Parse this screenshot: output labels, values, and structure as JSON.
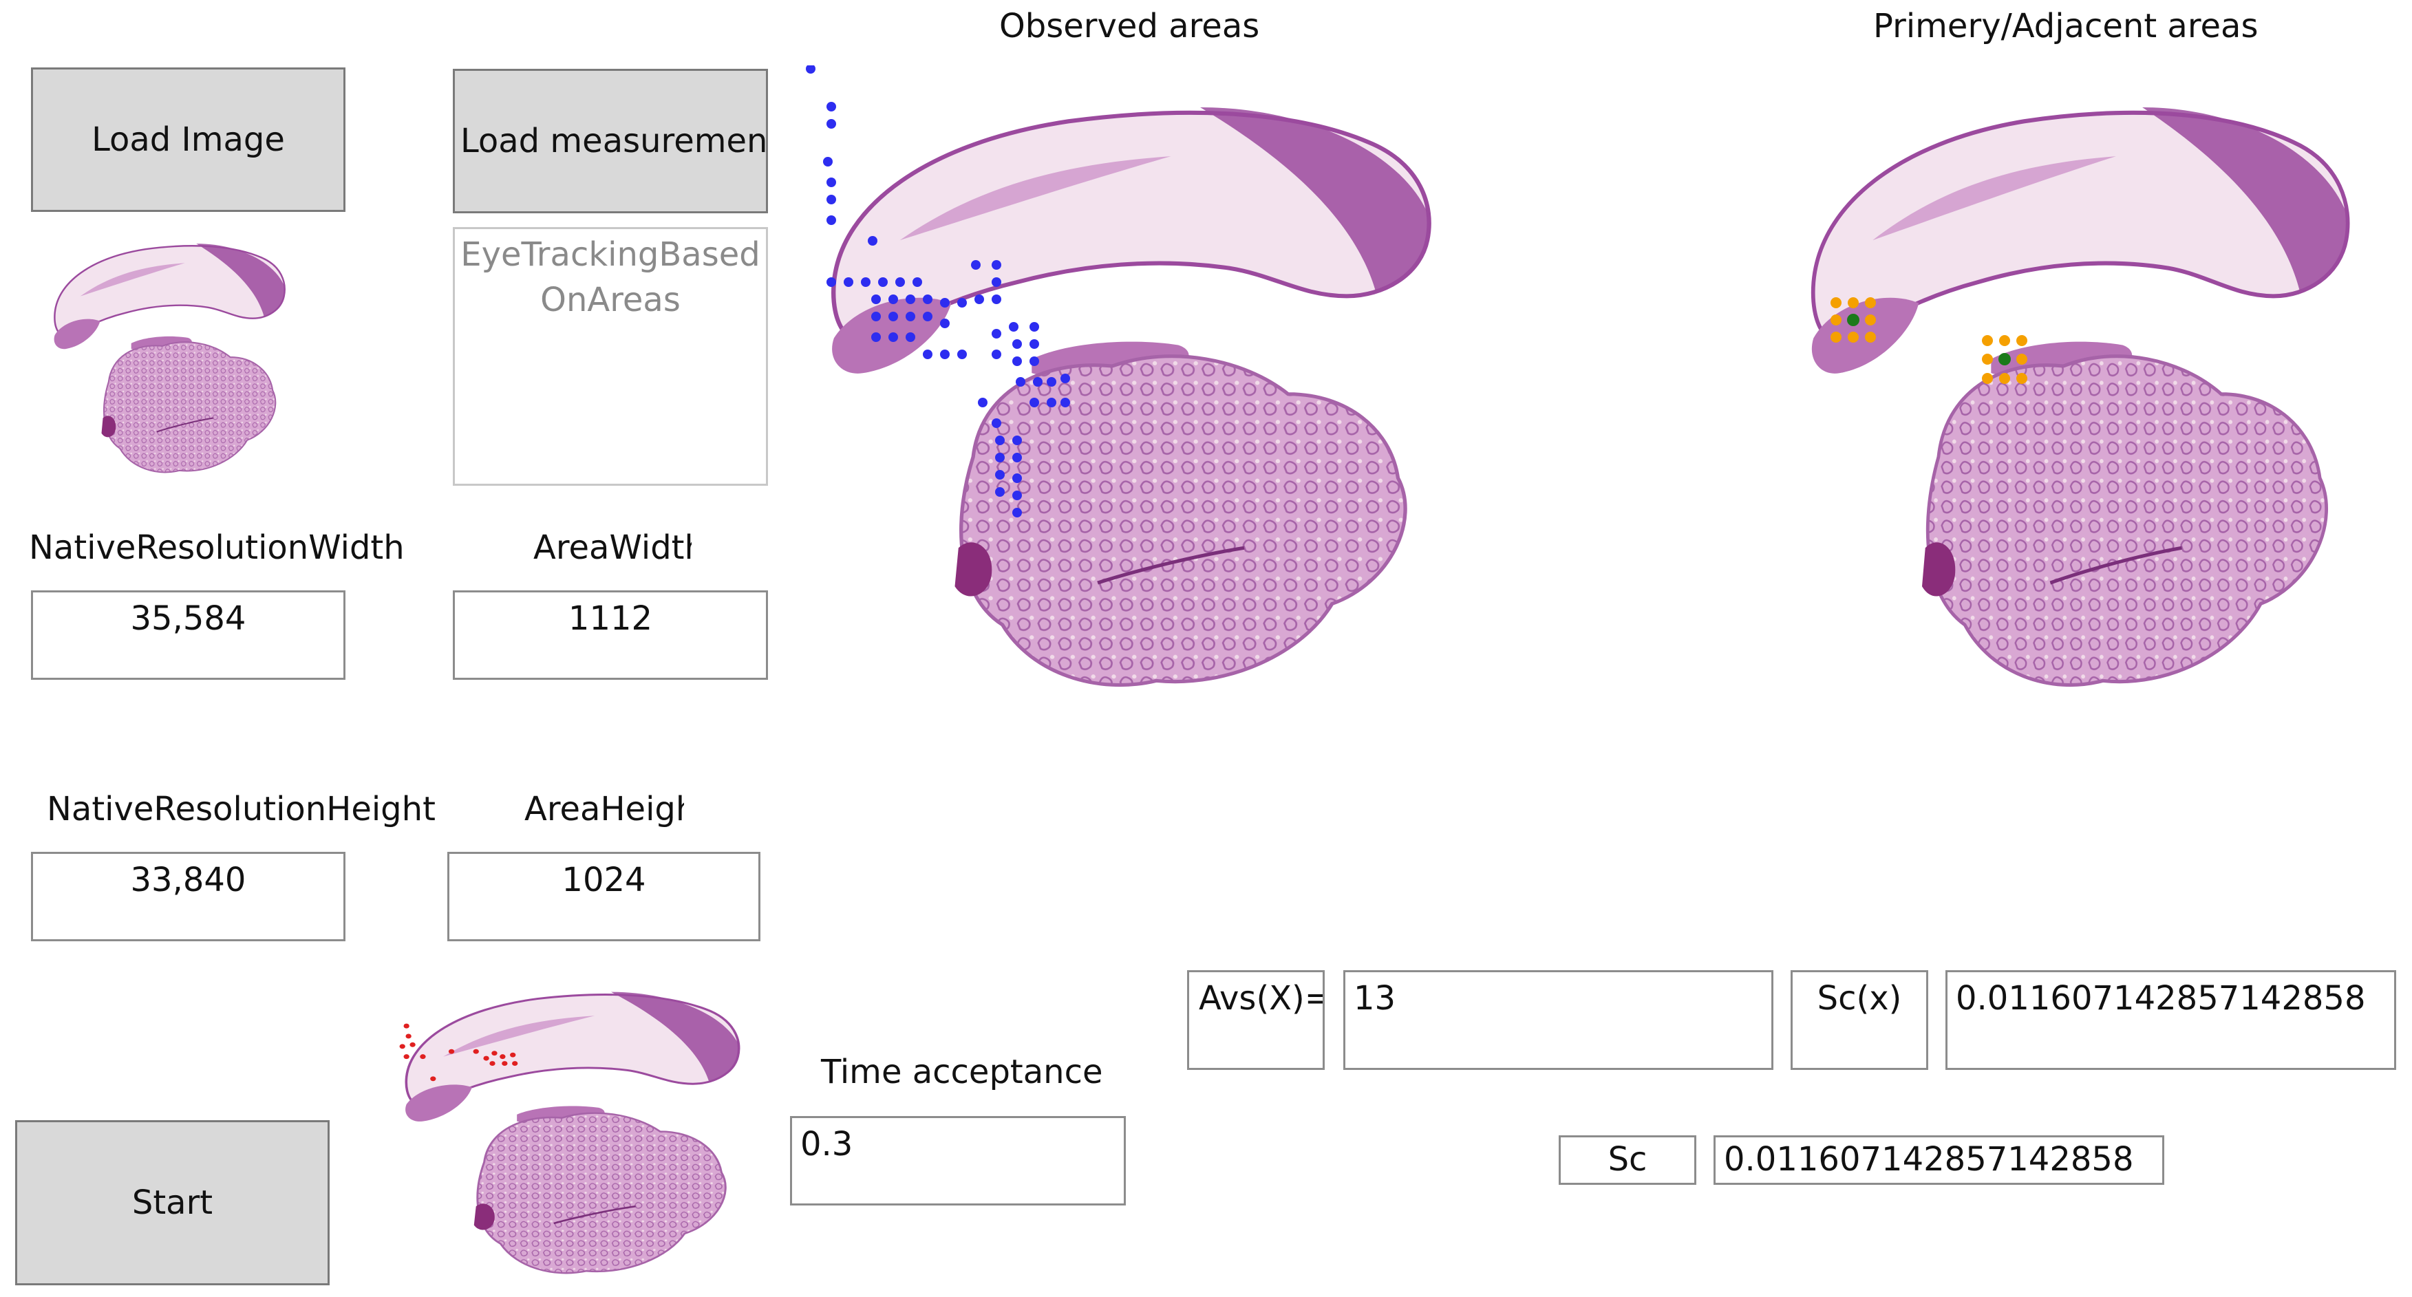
{
  "buttons": {
    "load_image": "Load Image",
    "load_measurements": "Load measurements",
    "start": "Start"
  },
  "measurements_list": {
    "line1": "EyeTrackingBased",
    "line2": "OnAreas"
  },
  "native_resolution": {
    "width_label": "NativeResolutionWidth",
    "width_value": "35,584",
    "height_label": "NativeResolutionHeight",
    "height_value": "33,840"
  },
  "area": {
    "width_label": "AreaWidth",
    "width_value": "1112",
    "height_label": "AreaHeight",
    "height_value": "1024"
  },
  "time_acceptance": {
    "label": "Time acceptance",
    "value": "0.3"
  },
  "panels": {
    "observed_title": "Observed areas",
    "primary_title": "Primery/Adjacent areas"
  },
  "results": {
    "avs_label": "Avs(X)=",
    "avs_value": "13",
    "scx_label": "Sc(x)",
    "scx_value": "0.011607142857142858",
    "sc_label": "Sc",
    "sc_value": "0.011607142857142858"
  },
  "colors": {
    "tissue_dark": "#9b4a9e",
    "tissue_light": "#d9a8d3",
    "tissue_pale": "#f1dbe9",
    "observed_dot": "#2d2df0",
    "adjacent_dot": "#f5a000",
    "primary_dot": "#1b7a1b",
    "gaze_dot": "#e02020"
  }
}
